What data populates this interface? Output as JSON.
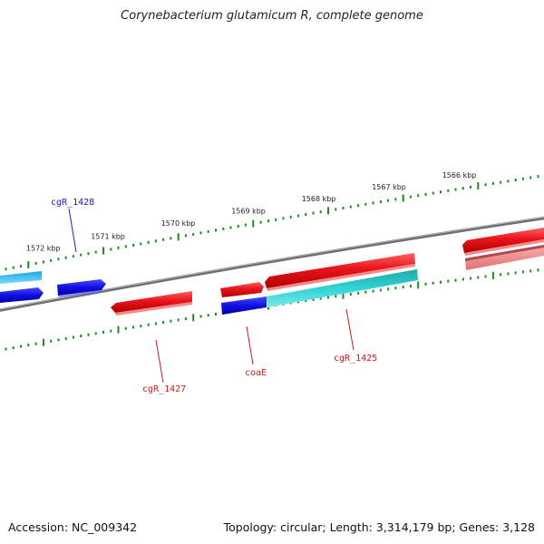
{
  "title": "Corynebacterium glutamicum R, complete genome",
  "accession": "Accession: NC_009342",
  "summary": "Topology: circular; Length: 3,314,179 bp; Genes: 3,128",
  "colors": {
    "backbone": "#7a7a7a",
    "ticks": "#1f8a1f",
    "gene_forward": "#e8141b",
    "gene_forward_light": "#f08a8a",
    "gene_reverse": "#1010e0",
    "gene_cyan": "#20c6c6",
    "gene_lightblue": "#1fb8ee",
    "label_blue": "#1a1acc",
    "label_red": "#cc1a1a"
  },
  "ticks": [
    {
      "label": "1572 kbp"
    },
    {
      "label": "1571 kbp"
    },
    {
      "label": "1570 kbp"
    },
    {
      "label": "1569 kbp"
    },
    {
      "label": "1568 kbp"
    },
    {
      "label": "1567 kbp"
    },
    {
      "label": "1566 kbp"
    }
  ],
  "gene_labels": {
    "cgR_1428": "cgR_1428",
    "cgR_1427": "cgR_1427",
    "coaE": "coaE",
    "cgR_1425": "cgR_1425"
  }
}
